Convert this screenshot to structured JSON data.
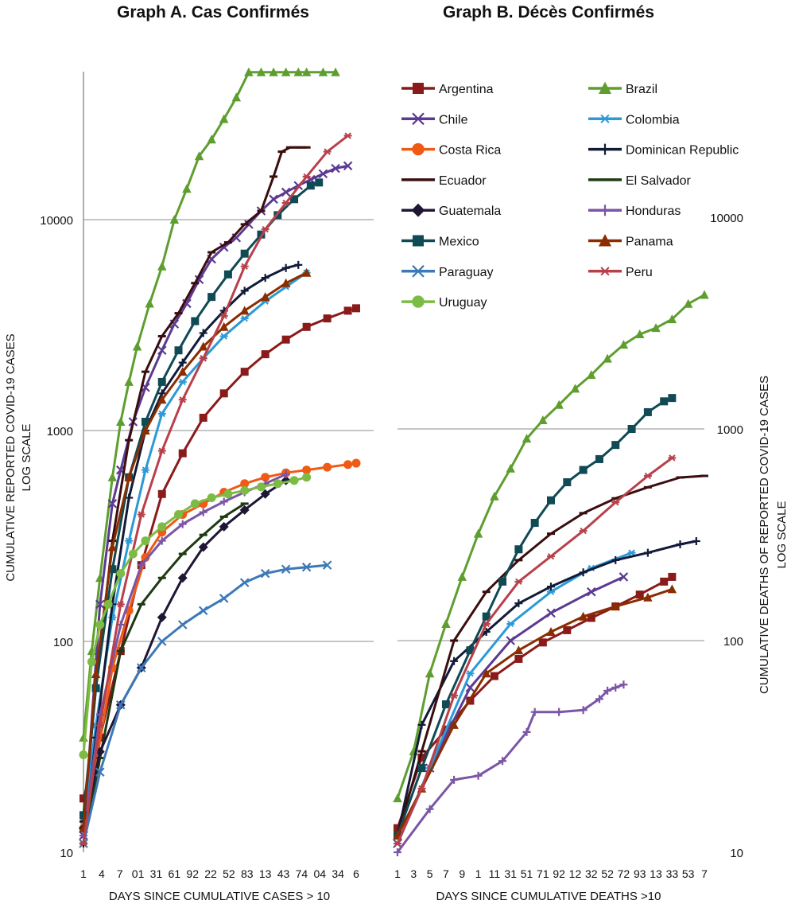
{
  "chart_data": [
    {
      "type": "line",
      "title": "Graph A. Cas Confirmés",
      "xlabel": "DAYS SINCE CUMULATIVE CASES > 10",
      "ylabel": [
        "CUMULATIVE REPORTED COVID-19 CASES",
        "LOG SCALE"
      ],
      "yscale": "log",
      "ylim": [
        10,
        60000
      ],
      "yticks": [
        "10",
        "100",
        "1000",
        "10000"
      ],
      "xlim": [
        1,
        67
      ],
      "xticks": [
        "1",
        "4",
        "7",
        "01",
        "31",
        "61",
        "92",
        "22",
        "52",
        "83",
        "13",
        "43",
        "74",
        "04",
        "34",
        "6"
      ],
      "grid": true,
      "series": [
        {
          "name": "Argentina",
          "x": [
            1,
            5,
            10,
            15,
            20,
            25,
            30,
            35,
            40,
            45,
            50,
            55,
            60,
            65,
            67
          ],
          "y": [
            18,
            35,
            90,
            230,
            500,
            780,
            1150,
            1500,
            1900,
            2300,
            2700,
            3100,
            3400,
            3700,
            3800
          ]
        },
        {
          "name": "Brazil",
          "x": [
            1,
            3,
            5,
            8,
            10,
            12,
            14,
            17,
            20,
            23,
            26,
            29,
            32,
            35,
            38,
            41,
            44,
            47,
            50,
            53,
            55,
            59,
            62
          ],
          "y": [
            35,
            90,
            200,
            600,
            1100,
            1700,
            2500,
            4000,
            6000,
            10000,
            14000,
            20000,
            24000,
            30000,
            38000,
            50000,
            50000,
            50000,
            50000,
            50000,
            50000,
            50000,
            50000
          ]
        },
        {
          "name": "Chile",
          "x": [
            1,
            5,
            8,
            10,
            13,
            16,
            20,
            23,
            26,
            29,
            32,
            35,
            38,
            41,
            44,
            47,
            50,
            53,
            56,
            59,
            62,
            65
          ],
          "y": [
            12,
            150,
            450,
            650,
            1100,
            1600,
            2400,
            3200,
            4000,
            5200,
            6500,
            7400,
            8200,
            9500,
            11000,
            12500,
            13500,
            14500,
            15500,
            16500,
            17500,
            18000
          ]
        },
        {
          "name": "Colombia",
          "x": [
            1,
            4,
            8,
            12,
            16,
            20,
            25,
            30,
            35,
            40,
            45,
            50,
            55
          ],
          "y": [
            14,
            40,
            130,
            300,
            650,
            1200,
            1700,
            2200,
            2800,
            3400,
            4100,
            4800,
            5600
          ]
        },
        {
          "name": "Costa Rica",
          "x": [
            1,
            4,
            8,
            12,
            16,
            20,
            25,
            30,
            35,
            40,
            45,
            50,
            55,
            60,
            65,
            67
          ],
          "y": [
            13,
            26,
            75,
            140,
            250,
            330,
            400,
            450,
            510,
            560,
            600,
            630,
            650,
            670,
            690,
            700
          ]
        },
        {
          "name": "Dominican Republic",
          "x": [
            1,
            4,
            8,
            12,
            16,
            20,
            25,
            30,
            35,
            40,
            45,
            50,
            53
          ],
          "y": [
            11,
            35,
            150,
            480,
            1000,
            1500,
            2100,
            2900,
            3700,
            4600,
            5300,
            5900,
            6100
          ]
        },
        {
          "name": "Ecuador",
          "x": [
            1,
            4,
            8,
            12,
            16,
            20,
            24,
            28,
            32,
            36,
            40,
            44,
            47,
            49,
            51,
            53,
            55
          ],
          "y": [
            14,
            60,
            300,
            900,
            1900,
            2800,
            3600,
            5000,
            7000,
            7800,
            9500,
            11000,
            16000,
            21000,
            22000,
            22000,
            22000
          ]
        },
        {
          "name": "El Salvador",
          "x": [
            1,
            5,
            10,
            15,
            20,
            25,
            30,
            35,
            40
          ],
          "y": [
            11,
            28,
            90,
            150,
            200,
            260,
            320,
            390,
            450
          ]
        },
        {
          "name": "Guatemala",
          "x": [
            1,
            5,
            10,
            15,
            20,
            25,
            30,
            35,
            40,
            45,
            50
          ],
          "y": [
            13,
            30,
            50,
            75,
            130,
            200,
            280,
            350,
            420,
            500,
            580
          ]
        },
        {
          "name": "Honduras",
          "x": [
            1,
            5,
            10,
            15,
            20,
            25,
            30,
            35,
            40,
            45,
            50
          ],
          "y": [
            12,
            45,
            120,
            230,
            300,
            360,
            410,
            460,
            510,
            560,
            620
          ]
        },
        {
          "name": "Mexico",
          "x": [
            1,
            4,
            8,
            12,
            16,
            20,
            24,
            28,
            32,
            36,
            40,
            44,
            48,
            52,
            56,
            58
          ],
          "y": [
            15,
            60,
            220,
            600,
            1100,
            1700,
            2400,
            3300,
            4300,
            5500,
            6900,
            8500,
            10500,
            12500,
            14500,
            15000
          ]
        },
        {
          "name": "Panama",
          "x": [
            1,
            4,
            8,
            12,
            16,
            20,
            25,
            30,
            35,
            40,
            45,
            50,
            55
          ],
          "y": [
            13,
            70,
            280,
            600,
            1000,
            1400,
            1900,
            2500,
            3100,
            3700,
            4300,
            5000,
            5600
          ]
        },
        {
          "name": "Paraguay",
          "x": [
            1,
            5,
            10,
            15,
            20,
            25,
            30,
            35,
            40,
            45,
            50,
            55,
            60
          ],
          "y": [
            11,
            24,
            50,
            75,
            100,
            120,
            140,
            160,
            190,
            210,
            220,
            225,
            230
          ]
        },
        {
          "name": "Peru",
          "x": [
            1,
            5,
            10,
            15,
            20,
            25,
            30,
            35,
            40,
            45,
            50,
            55,
            60,
            65
          ],
          "y": [
            11,
            40,
            150,
            400,
            800,
            1400,
            2200,
            3500,
            6000,
            9000,
            12000,
            16000,
            21000,
            25000
          ]
        },
        {
          "name": "Uruguay",
          "x": [
            1,
            3,
            5,
            7,
            10,
            13,
            16,
            20,
            24,
            28,
            32,
            36,
            40,
            44,
            48,
            52,
            55
          ],
          "y": [
            29,
            80,
            120,
            150,
            210,
            260,
            300,
            350,
            400,
            450,
            480,
            500,
            520,
            540,
            560,
            580,
            600
          ]
        }
      ]
    },
    {
      "type": "line",
      "title": "Graph B. Décès Confirmés",
      "xlabel": "DAYS SINCE CUMULATIVE DEATHS >10",
      "ylabel": [
        "CUMULATIVE DEATHS OF REPORTED COVID-19 CASES",
        "LOG SCALE"
      ],
      "yscale": "log",
      "ylim": [
        10,
        10000
      ],
      "yticks": [
        "10",
        "100",
        "1000",
        "10000"
      ],
      "xlim": [
        1,
        39
      ],
      "xticks": [
        "1",
        "3",
        "5",
        "7",
        "9",
        "1",
        "11",
        "31",
        "51",
        "71",
        "92",
        "12",
        "32",
        "52",
        "72",
        "93",
        "13",
        "33",
        "53",
        "7"
      ],
      "grid": true,
      "series": [
        {
          "name": "Argentina",
          "x": [
            1,
            4,
            7,
            10,
            13,
            16,
            19,
            22,
            25,
            28,
            31,
            34,
            35
          ],
          "y": [
            13,
            28,
            38,
            52,
            68,
            82,
            98,
            112,
            128,
            145,
            165,
            190,
            200
          ]
        },
        {
          "name": "Brazil",
          "x": [
            1,
            3,
            5,
            7,
            9,
            11,
            13,
            15,
            17,
            19,
            21,
            23,
            25,
            27,
            29,
            31,
            33,
            35,
            37,
            39
          ],
          "y": [
            18,
            30,
            70,
            120,
            200,
            320,
            480,
            650,
            900,
            1100,
            1300,
            1550,
            1800,
            2150,
            2500,
            2800,
            3000,
            3300,
            3900,
            4300
          ]
        },
        {
          "name": "Chile",
          "x": [
            1,
            5,
            10,
            15,
            20,
            25,
            29
          ],
          "y": [
            11,
            25,
            60,
            100,
            135,
            170,
            200
          ]
        },
        {
          "name": "Colombia",
          "x": [
            1,
            5,
            10,
            15,
            20,
            25,
            30
          ],
          "y": [
            11,
            25,
            70,
            120,
            170,
            220,
            260
          ]
        },
        {
          "name": "Dominican Republic",
          "x": [
            1,
            4,
            8,
            12,
            16,
            20,
            24,
            28,
            32,
            36,
            38
          ],
          "y": [
            12,
            40,
            80,
            110,
            150,
            180,
            210,
            240,
            260,
            285,
            295
          ]
        },
        {
          "name": "Ecuador",
          "x": [
            1,
            4,
            8,
            12,
            16,
            20,
            24,
            28,
            32,
            36,
            39
          ],
          "y": [
            12,
            30,
            100,
            170,
            240,
            320,
            400,
            470,
            530,
            590,
            600
          ]
        },
        {
          "name": "Honduras",
          "x": [
            1,
            5,
            8,
            11,
            14,
            17,
            18,
            21,
            24,
            26,
            27,
            28,
            29
          ],
          "y": [
            10,
            16,
            22,
            23,
            27,
            37,
            46,
            46,
            47,
            53,
            58,
            60,
            62
          ]
        },
        {
          "name": "Mexico",
          "x": [
            1,
            4,
            7,
            10,
            12,
            14,
            16,
            18,
            20,
            22,
            24,
            26,
            28,
            30,
            32,
            34,
            35
          ],
          "y": [
            12,
            25,
            50,
            90,
            130,
            190,
            270,
            360,
            460,
            560,
            640,
            720,
            840,
            1000,
            1200,
            1350,
            1400
          ]
        },
        {
          "name": "Panama",
          "x": [
            1,
            4,
            8,
            12,
            16,
            20,
            24,
            28,
            32,
            35
          ],
          "y": [
            12,
            20,
            40,
            70,
            90,
            110,
            130,
            145,
            160,
            175
          ]
        },
        {
          "name": "Peru",
          "x": [
            1,
            4,
            8,
            12,
            16,
            20,
            24,
            28,
            32,
            35
          ],
          "y": [
            11,
            20,
            55,
            120,
            190,
            250,
            330,
            450,
            600,
            730
          ]
        }
      ]
    }
  ],
  "legend": [
    {
      "name": "Argentina",
      "color": "#8b1a1a",
      "marker": "square"
    },
    {
      "name": "Brazil",
      "color": "#5e9e2f",
      "marker": "triangle"
    },
    {
      "name": "Chile",
      "color": "#5b3a92",
      "marker": "x"
    },
    {
      "name": "Colombia",
      "color": "#2b9ad6",
      "marker": "asterisk"
    },
    {
      "name": "Costa Rica",
      "color": "#f05a14",
      "marker": "circle"
    },
    {
      "name": "Dominican Republic",
      "color": "#111b38",
      "marker": "plus"
    },
    {
      "name": "Ecuador",
      "color": "#3a0e0e",
      "marker": "dash"
    },
    {
      "name": "El Salvador",
      "color": "#1f3a12",
      "marker": "dash"
    },
    {
      "name": "Guatemala",
      "color": "#1f1636",
      "marker": "diamond"
    },
    {
      "name": "Honduras",
      "color": "#7b55a6",
      "marker": "plus"
    },
    {
      "name": "Mexico",
      "color": "#0f4a55",
      "marker": "square"
    },
    {
      "name": "Panama",
      "color": "#8a2d00",
      "marker": "triangle"
    },
    {
      "name": "Paraguay",
      "color": "#3d79b6",
      "marker": "x"
    },
    {
      "name": "Peru",
      "color": "#b8404a",
      "marker": "asterisk"
    },
    {
      "name": "Uruguay",
      "color": "#7cbb45",
      "marker": "circle"
    }
  ]
}
